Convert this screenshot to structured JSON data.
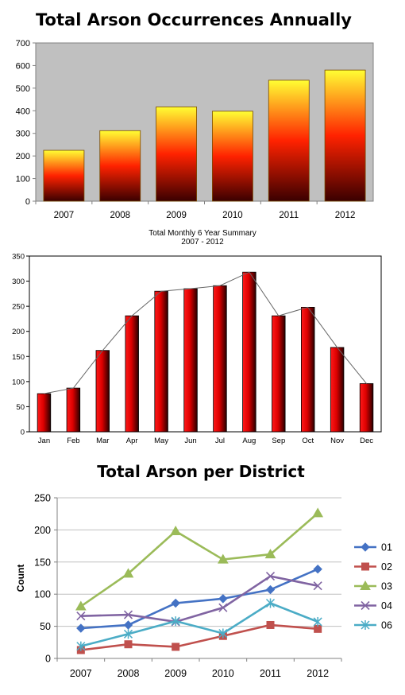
{
  "chart_data": [
    {
      "type": "bar",
      "title": "Total Arson Occurrences Annually",
      "categories": [
        "2007",
        "2008",
        "2009",
        "2010",
        "2011",
        "2012"
      ],
      "values": [
        225,
        312,
        417,
        398,
        535,
        580
      ],
      "ylim": [
        0,
        700
      ],
      "yticks": [
        0,
        100,
        200,
        300,
        400,
        500,
        600,
        700
      ],
      "grid": false,
      "legend": "none",
      "colors": {
        "plot_bg": "#c0c0c0",
        "bar_top": "#ffff33",
        "bar_mid": "#ff1a00",
        "bar_bottom": "#3a0000"
      }
    },
    {
      "type": "bar",
      "title": "Total Monthly 6 Year Summary",
      "subtitle": "2007 - 2012",
      "categories": [
        "Jan",
        "Feb",
        "Mar",
        "Apr",
        "May",
        "Jun",
        "Jul",
        "Aug",
        "Sep",
        "Oct",
        "Nov",
        "Dec"
      ],
      "values": [
        76,
        87,
        162,
        231,
        280,
        285,
        291,
        318,
        231,
        248,
        168,
        96
      ],
      "ylim": [
        0,
        350
      ],
      "yticks": [
        0,
        50,
        100,
        150,
        200,
        250,
        300,
        350
      ],
      "grid": false,
      "legend": "none",
      "overlay_line": true,
      "colors": {
        "bar_light": "#ff0000",
        "bar_dark": "#330000",
        "line": "#666666"
      }
    },
    {
      "type": "line",
      "title": "Total Arson per District",
      "ylabel": "Count",
      "x": [
        "2007",
        "2008",
        "2009",
        "2010",
        "2011",
        "2012"
      ],
      "ylim": [
        0,
        250
      ],
      "yticks": [
        0,
        50,
        100,
        150,
        200,
        250
      ],
      "grid": true,
      "legend": "right",
      "series": [
        {
          "name": "01",
          "values": [
            47,
            52,
            86,
            93,
            107,
            139
          ],
          "color": "#4472c4",
          "marker": "diamond"
        },
        {
          "name": "02",
          "values": [
            13,
            22,
            18,
            35,
            52,
            46
          ],
          "color": "#c0504d",
          "marker": "square"
        },
        {
          "name": "03",
          "values": [
            81,
            132,
            198,
            154,
            162,
            226
          ],
          "color": "#9bbb59",
          "marker": "triangle"
        },
        {
          "name": "04",
          "values": [
            66,
            68,
            57,
            79,
            128,
            113
          ],
          "color": "#8064a2",
          "marker": "x"
        },
        {
          "name": "06",
          "values": [
            19,
            38,
            58,
            39,
            86,
            57
          ],
          "color": "#4bacc6",
          "marker": "star"
        }
      ]
    }
  ]
}
